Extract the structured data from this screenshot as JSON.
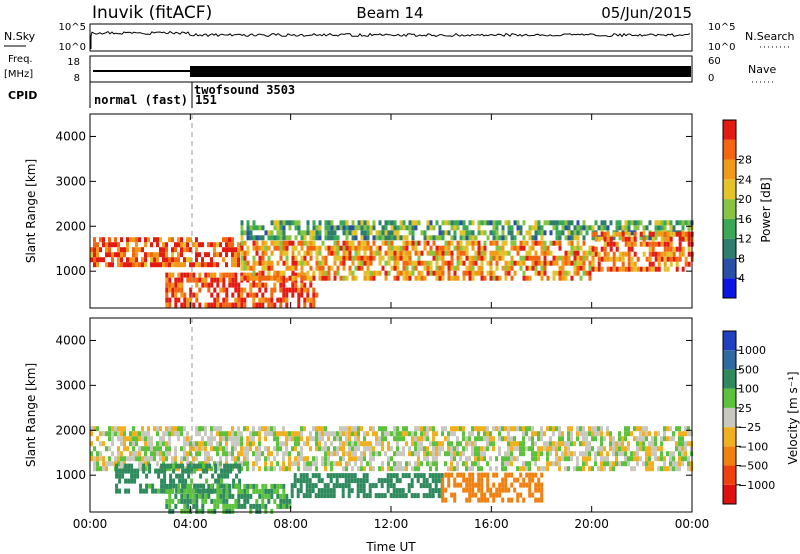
{
  "header": {
    "station": "Inuvik (fitACF)",
    "beam": "Beam 14",
    "date": "05/Jun/2015"
  },
  "status_panel": {
    "nsky_label": "N.Sky",
    "nsky_ticks": [
      "10^5",
      "10^0"
    ],
    "nsearch_label": "N.Search",
    "nsearch_ticks": [
      "10^5",
      "10^0"
    ],
    "freq_label": "Freq.",
    "freq_unit": "[MHz]",
    "freq_ticks": [
      "18",
      "8"
    ],
    "nave_label": "Nave",
    "nave_ticks": [
      "60",
      "0"
    ],
    "cpid_label": "CPID",
    "modes": [
      {
        "label": "normal (fast) 151",
        "start_hour": 0,
        "end_hour": 4.0
      },
      {
        "label": "twofsound 3503",
        "start_hour": 4.0,
        "end_hour": 24
      }
    ]
  },
  "chart_data": [
    {
      "type": "heatmap",
      "name": "power",
      "xlabel": "",
      "ylabel": "Slant Range [km]",
      "xlim": [
        0,
        24
      ],
      "ylim": [
        180,
        4500
      ],
      "yticks": [
        "1000",
        "2000",
        "3000",
        "4000"
      ],
      "colorbar": {
        "label": "Power [dB]",
        "ticks": [
          "4",
          "8",
          "12",
          "16",
          "20",
          "24",
          "28"
        ],
        "range": [
          0,
          30
        ],
        "colors": [
          "#0a14e6",
          "#2a4fa8",
          "#2f7d6c",
          "#3aa855",
          "#86c441",
          "#e3c22a",
          "#f29a18",
          "#f3660f",
          "#e31a12"
        ]
      },
      "bands": [
        {
          "x": [
            0,
            6
          ],
          "y": [
            1200,
            1800
          ],
          "value": 26
        },
        {
          "x": [
            3,
            9
          ],
          "y": [
            300,
            1000
          ],
          "value": 28
        },
        {
          "x": [
            6,
            20
          ],
          "y": [
            900,
            1700
          ],
          "value": 22
        },
        {
          "x": [
            6,
            24
          ],
          "y": [
            1800,
            2200
          ],
          "value": 12
        },
        {
          "x": [
            20,
            24
          ],
          "y": [
            1100,
            1900
          ],
          "value": 24
        }
      ]
    },
    {
      "type": "heatmap",
      "name": "velocity",
      "xlabel": "Time UT",
      "ylabel": "Slant Range [km]",
      "xlim": [
        0,
        24
      ],
      "ylim": [
        180,
        4500
      ],
      "xticks": [
        "00:00",
        "04:00",
        "08:00",
        "12:00",
        "16:00",
        "20:00",
        "00:00"
      ],
      "yticks": [
        "1000",
        "2000",
        "3000",
        "4000"
      ],
      "colorbar": {
        "label": "Velocity [m s⁻¹]",
        "ticks": [
          "1000",
          "500",
          "100",
          "25",
          "−25",
          "−100",
          "−500",
          "−1000"
        ],
        "colors": [
          "#2040c0",
          "#2f6aa0",
          "#2e8a5c",
          "#5cc23c",
          "#c8c8c0",
          "#f0b020",
          "#f08010",
          "#f04010",
          "#e01010"
        ]
      },
      "bands": [
        {
          "x": [
            0,
            24
          ],
          "y": [
            1200,
            2100
          ],
          "value": 0
        },
        {
          "x": [
            1,
            6
          ],
          "y": [
            700,
            1300
          ],
          "value": 150
        },
        {
          "x": [
            3,
            8
          ],
          "y": [
            250,
            900
          ],
          "value": 100
        },
        {
          "x": [
            8,
            14
          ],
          "y": [
            600,
            1100
          ],
          "value": 300
        },
        {
          "x": [
            14,
            18
          ],
          "y": [
            500,
            1100
          ],
          "value": -300
        }
      ]
    }
  ]
}
